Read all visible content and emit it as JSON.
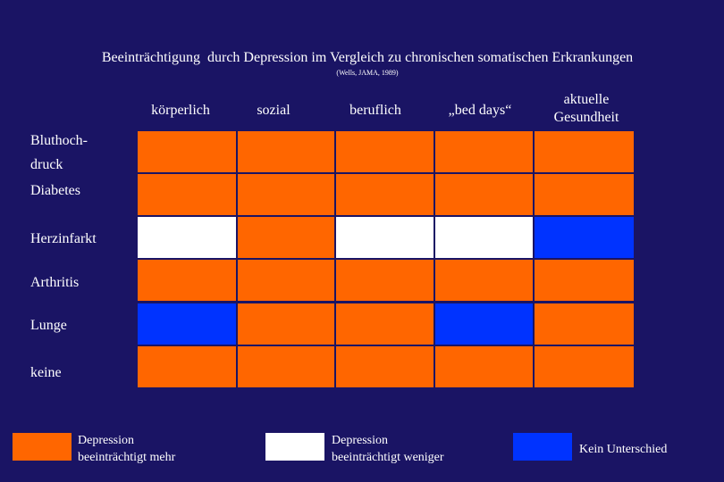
{
  "title": "Beeinträchtigung  durch Depression im Vergleich zu chronischen somatischen Erkrankungen",
  "source": "(Wells, JAMA, 1989)",
  "columns": [
    "körperlich",
    "sozial",
    "beruflich",
    "„bed days“",
    "aktuelle\nGesundheit"
  ],
  "rows": [
    "Bluthoch-\ndruck",
    "Diabetes",
    "Herzinfarkt",
    "Arthritis",
    "Lunge",
    "keine"
  ],
  "colors": {
    "more": "#ff6600",
    "less": "#ffffff",
    "none": "#0033ff",
    "background": "#1a1464"
  },
  "matrix": [
    [
      "more",
      "more",
      "more",
      "more",
      "more"
    ],
    [
      "more",
      "more",
      "more",
      "more",
      "more"
    ],
    [
      "less",
      "more",
      "less",
      "less",
      "none"
    ],
    [
      "more",
      "more",
      "more",
      "more",
      "more"
    ],
    [
      "none",
      "more",
      "more",
      "none",
      "more"
    ],
    [
      "more",
      "more",
      "more",
      "more",
      "more"
    ]
  ],
  "legend": [
    {
      "key": "more",
      "label": "Depression\nbeeinträchtigt mehr"
    },
    {
      "key": "less",
      "label": "Depression\nbeeinträchtigt weniger"
    },
    {
      "key": "none",
      "label": "Kein Unterschied"
    }
  ]
}
